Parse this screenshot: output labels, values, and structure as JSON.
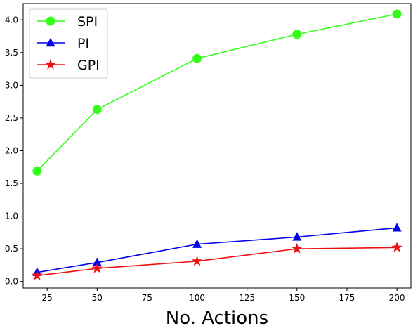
{
  "chart_data": {
    "type": "line",
    "title": "",
    "xlabel": "No. Actions",
    "ylabel": "",
    "x": [
      20,
      50,
      100,
      150,
      200
    ],
    "xlim": [
      13,
      207
    ],
    "ylim": [
      -0.1,
      4.25
    ],
    "xticks": [
      25,
      50,
      75,
      100,
      125,
      150,
      175,
      200
    ],
    "yticks": [
      0.0,
      0.5,
      1.0,
      1.5,
      2.0,
      2.5,
      3.0,
      3.5,
      4.0
    ],
    "xtick_labels": [
      "25",
      "50",
      "75",
      "100",
      "125",
      "150",
      "175",
      "200"
    ],
    "ytick_labels": [
      "0.0",
      "0.5",
      "1.0",
      "1.5",
      "2.0",
      "2.5",
      "3.0",
      "3.5",
      "4.0"
    ],
    "grid": false,
    "legend_position": "top-left",
    "series": [
      {
        "name": "SPI",
        "color": "#33ff1a",
        "marker": "circle",
        "values": [
          1.69,
          2.63,
          3.41,
          3.78,
          4.09
        ]
      },
      {
        "name": "PI",
        "color": "#0000ee",
        "marker": "triangle",
        "values": [
          0.14,
          0.29,
          0.57,
          0.68,
          0.82
        ]
      },
      {
        "name": "GPI",
        "color": "#ee1111",
        "marker": "star",
        "values": [
          0.09,
          0.2,
          0.31,
          0.5,
          0.52
        ]
      }
    ]
  }
}
